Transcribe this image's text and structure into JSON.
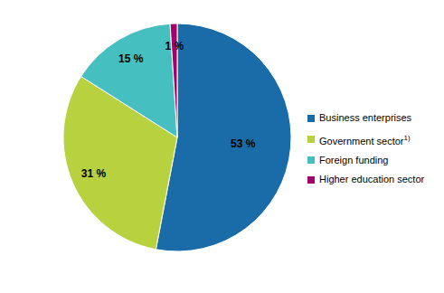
{
  "chart_data": {
    "type": "pie",
    "categories": [
      "Business enterprises",
      "Government sector",
      "Foreign funding",
      "Higher education sector"
    ],
    "footnotes": [
      null,
      "1)",
      null,
      null
    ],
    "values": [
      53,
      31,
      15,
      1
    ],
    "value_labels": [
      "53 %",
      "31 %",
      "15 %",
      "1 %"
    ],
    "colors": [
      "#1a6ca8",
      "#b8d23f",
      "#45bfbf",
      "#a3006b"
    ],
    "data_labels": true,
    "legend": "right"
  }
}
